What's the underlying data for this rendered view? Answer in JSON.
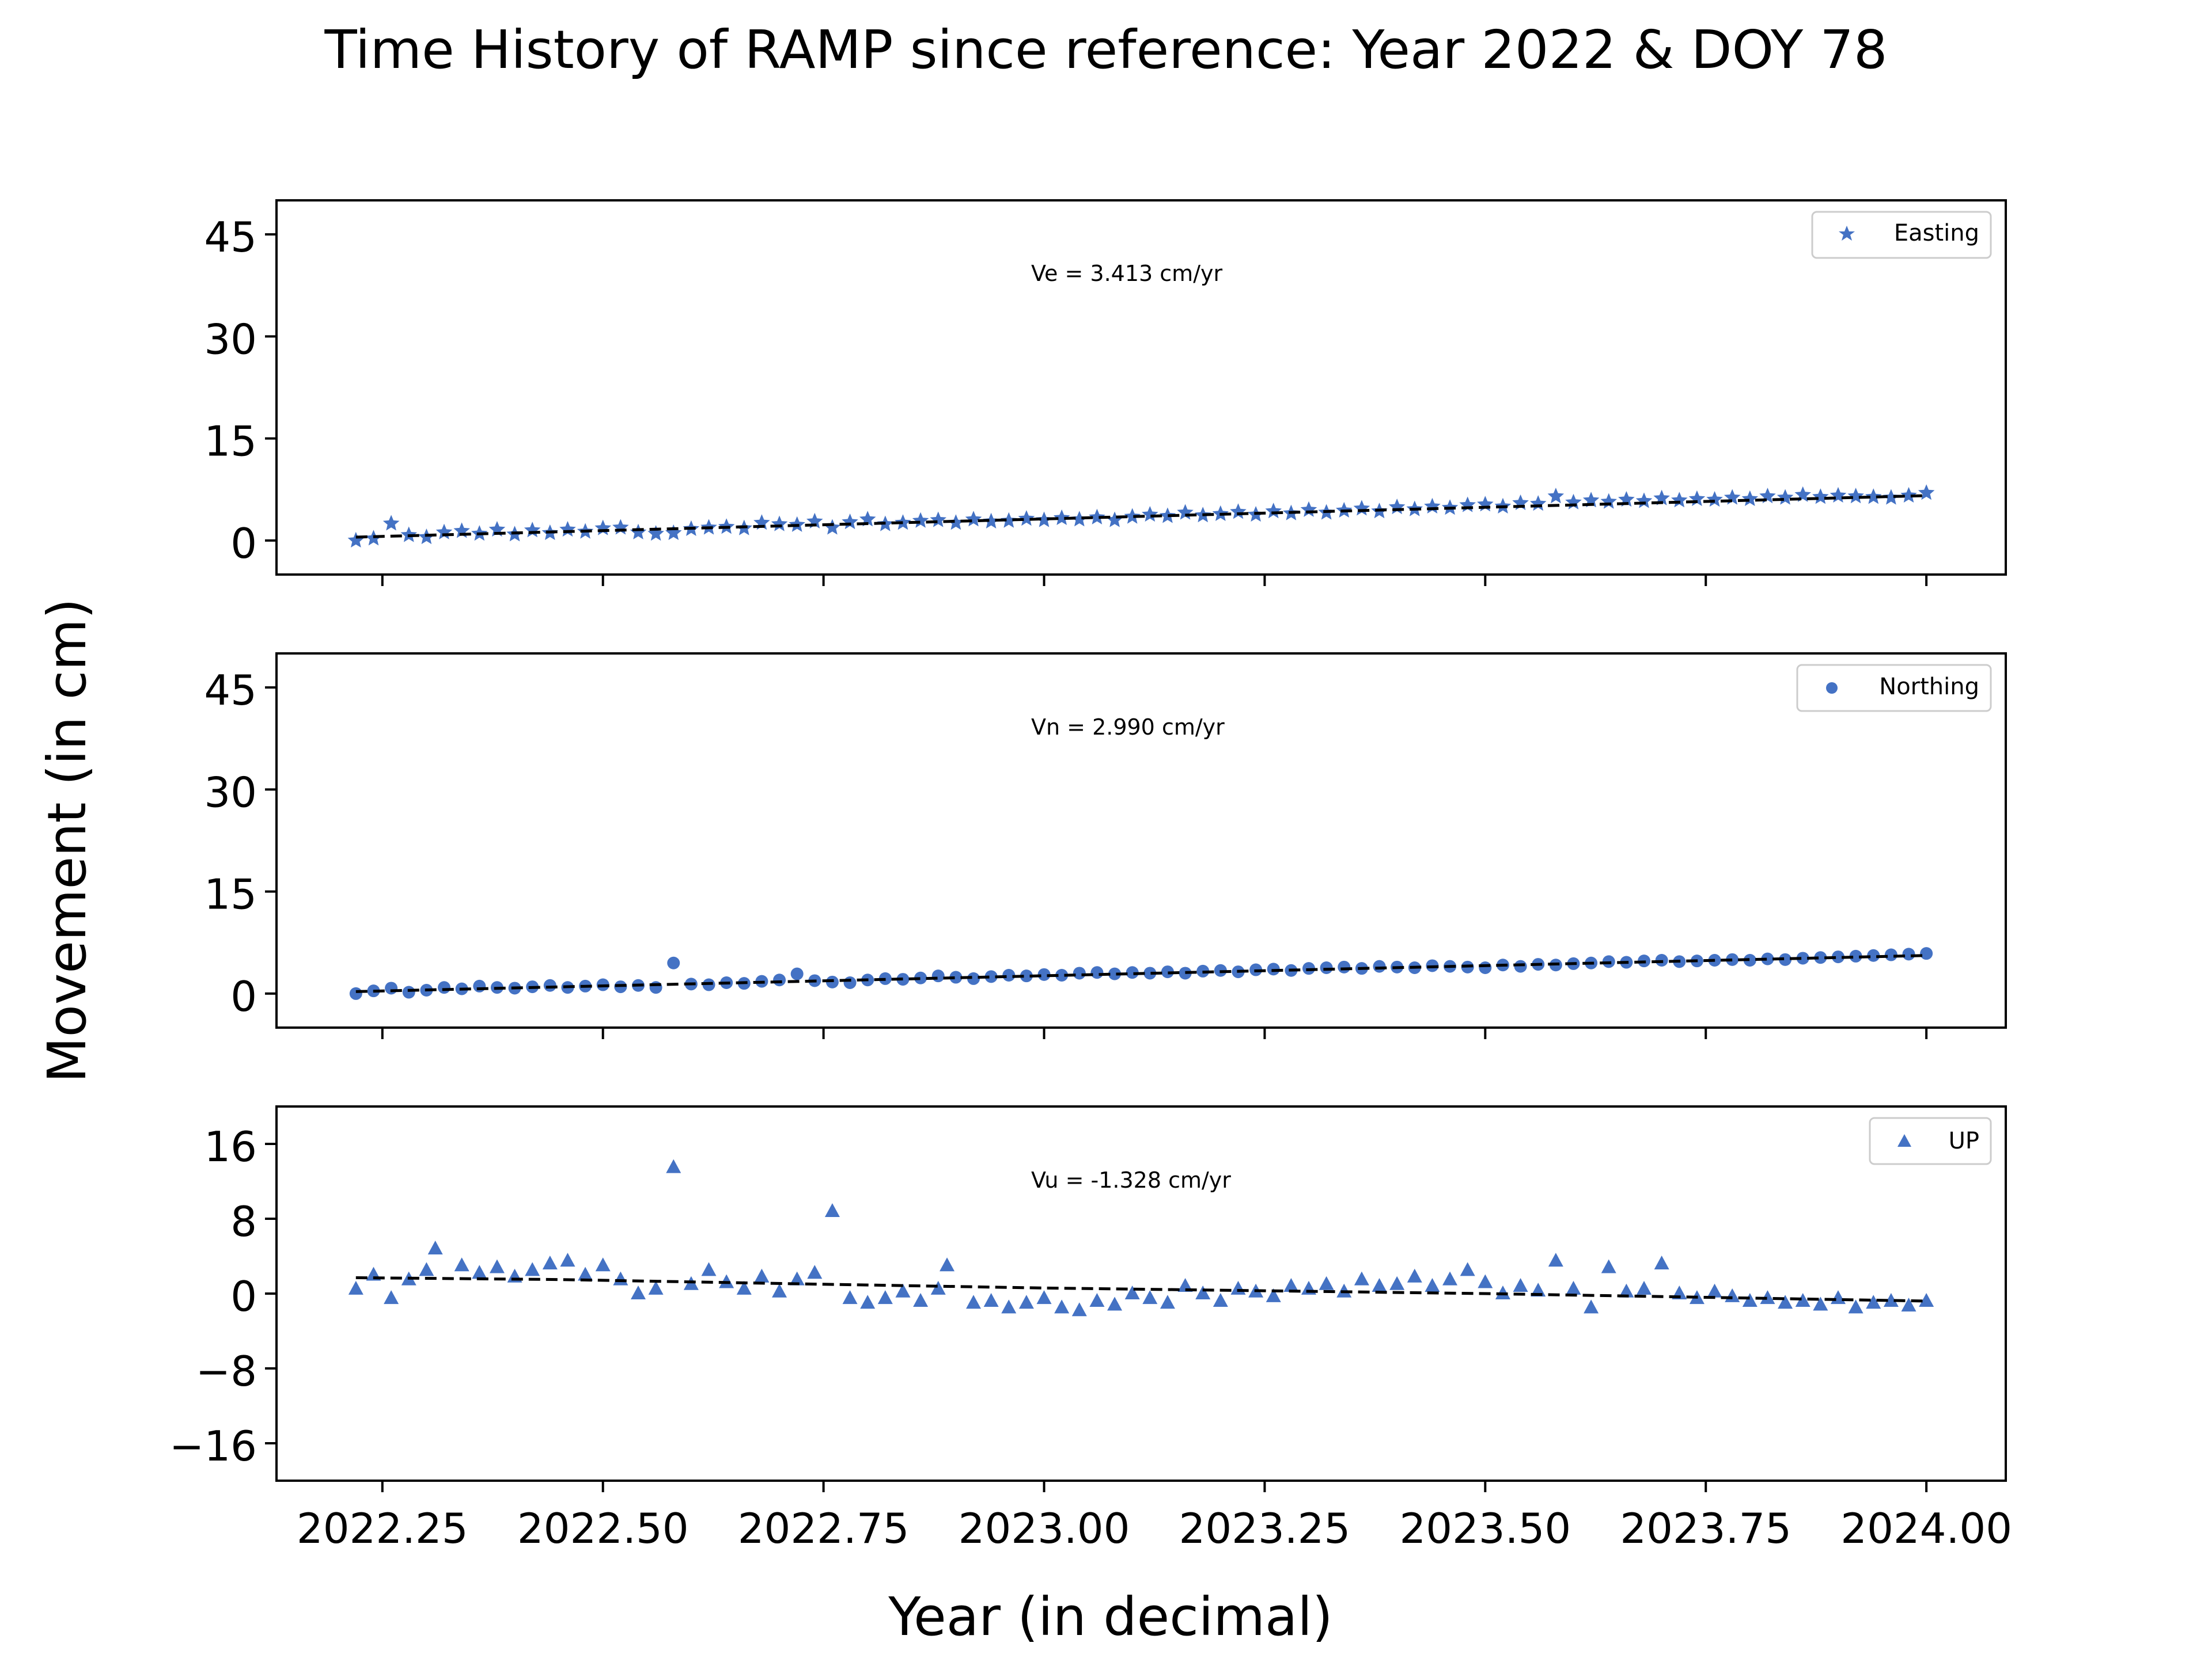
{
  "figure": {
    "title": "Time History of RAMP since reference: Year 2022 & DOY 78",
    "xlabel": "Year (in decimal)",
    "ylabel": "Movement (in cm)",
    "x_ticks": [
      "2022.25",
      "2022.50",
      "2022.75",
      "2023.00",
      "2023.25",
      "2023.50",
      "2023.75",
      "2024.00"
    ]
  },
  "colors": {
    "series": "#4472c4",
    "trend": "#000000"
  },
  "chart_data": [
    {
      "type": "scatter",
      "panel": "easting",
      "legend": "Easting",
      "marker": "star",
      "annotation": "Ve =  3.413 cm/yr",
      "xlim": [
        2022.13,
        2024.09
      ],
      "ylim": [
        -5,
        50
      ],
      "yticks": [
        0,
        15,
        30,
        45
      ],
      "ytick_labels": [
        "0",
        "15",
        "30",
        "45"
      ],
      "trend": {
        "x": [
          2022.22,
          2024.0
        ],
        "y": [
          0.5,
          6.6
        ]
      },
      "x": [
        2022.22,
        2022.24,
        2022.26,
        2022.28,
        2022.3,
        2022.32,
        2022.34,
        2022.36,
        2022.38,
        2022.4,
        2022.42,
        2022.44,
        2022.46,
        2022.48,
        2022.5,
        2022.52,
        2022.54,
        2022.56,
        2022.58,
        2022.6,
        2022.62,
        2022.64,
        2022.66,
        2022.68,
        2022.7,
        2022.72,
        2022.74,
        2022.76,
        2022.78,
        2022.8,
        2022.82,
        2022.84,
        2022.86,
        2022.88,
        2022.9,
        2022.92,
        2022.94,
        2022.96,
        2022.98,
        2023.0,
        2023.02,
        2023.04,
        2023.06,
        2023.08,
        2023.1,
        2023.12,
        2023.14,
        2023.16,
        2023.18,
        2023.2,
        2023.22,
        2023.24,
        2023.26,
        2023.28,
        2023.3,
        2023.32,
        2023.34,
        2023.36,
        2023.38,
        2023.4,
        2023.42,
        2023.44,
        2023.46,
        2023.48,
        2023.5,
        2023.52,
        2023.54,
        2023.56,
        2023.58,
        2023.6,
        2023.62,
        2023.64,
        2023.66,
        2023.68,
        2023.7,
        2023.72,
        2023.74,
        2023.76,
        2023.78,
        2023.8,
        2023.82,
        2023.84,
        2023.86,
        2023.88,
        2023.9,
        2023.92,
        2023.94,
        2023.96,
        2023.98,
        2024.0
      ],
      "y": [
        0.0,
        0.3,
        2.5,
        0.8,
        0.5,
        1.2,
        1.4,
        1.0,
        1.6,
        0.9,
        1.5,
        1.1,
        1.6,
        1.3,
        1.8,
        1.9,
        1.2,
        1.0,
        1.1,
        1.7,
        1.9,
        2.0,
        1.8,
        2.6,
        2.4,
        2.3,
        2.8,
        1.9,
        2.7,
        3.1,
        2.4,
        2.6,
        2.9,
        3.0,
        2.6,
        3.1,
        2.8,
        2.9,
        3.2,
        3.0,
        3.3,
        3.1,
        3.4,
        3.0,
        3.5,
        3.8,
        3.6,
        4.1,
        3.7,
        3.9,
        4.2,
        3.8,
        4.3,
        4.0,
        4.5,
        4.1,
        4.4,
        4.7,
        4.3,
        4.9,
        4.6,
        5.0,
        4.8,
        5.2,
        5.3,
        5.0,
        5.5,
        5.4,
        6.5,
        5.6,
        5.9,
        5.7,
        6.0,
        5.8,
        6.2,
        5.9,
        6.1,
        6.0,
        6.3,
        6.1,
        6.5,
        6.3,
        6.7,
        6.4,
        6.6,
        6.5,
        6.4,
        6.3,
        6.6,
        7.0
      ]
    },
    {
      "type": "scatter",
      "panel": "northing",
      "legend": "Northing",
      "marker": "circle",
      "annotation": "Vn =  2.990 cm/yr",
      "xlim": [
        2022.13,
        2024.09
      ],
      "ylim": [
        -5,
        50
      ],
      "yticks": [
        0,
        15,
        30,
        45
      ],
      "ytick_labels": [
        "0",
        "15",
        "30",
        "45"
      ],
      "trend": {
        "x": [
          2022.22,
          2024.0
        ],
        "y": [
          0.3,
          5.6
        ]
      },
      "x": [
        2022.22,
        2022.24,
        2022.26,
        2022.28,
        2022.3,
        2022.32,
        2022.34,
        2022.36,
        2022.38,
        2022.4,
        2022.42,
        2022.44,
        2022.46,
        2022.48,
        2022.5,
        2022.52,
        2022.54,
        2022.56,
        2022.58,
        2022.6,
        2022.62,
        2022.64,
        2022.66,
        2022.68,
        2022.7,
        2022.72,
        2022.74,
        2022.76,
        2022.78,
        2022.8,
        2022.82,
        2022.84,
        2022.86,
        2022.88,
        2022.9,
        2022.92,
        2022.94,
        2022.96,
        2022.98,
        2023.0,
        2023.02,
        2023.04,
        2023.06,
        2023.08,
        2023.1,
        2023.12,
        2023.14,
        2023.16,
        2023.18,
        2023.2,
        2023.22,
        2023.24,
        2023.26,
        2023.28,
        2023.3,
        2023.32,
        2023.34,
        2023.36,
        2023.38,
        2023.4,
        2023.42,
        2023.44,
        2023.46,
        2023.48,
        2023.5,
        2023.52,
        2023.54,
        2023.56,
        2023.58,
        2023.6,
        2023.62,
        2023.64,
        2023.66,
        2023.68,
        2023.7,
        2023.72,
        2023.74,
        2023.76,
        2023.78,
        2023.8,
        2023.82,
        2023.84,
        2023.86,
        2023.88,
        2023.9,
        2023.92,
        2023.94,
        2023.96,
        2023.98,
        2024.0
      ],
      "y": [
        0.0,
        0.4,
        0.8,
        0.2,
        0.5,
        0.9,
        0.7,
        1.1,
        0.9,
        0.8,
        1.0,
        1.2,
        0.9,
        1.1,
        1.3,
        1.0,
        1.2,
        0.9,
        4.5,
        1.4,
        1.3,
        1.6,
        1.5,
        1.8,
        2.0,
        2.9,
        1.9,
        1.7,
        1.6,
        2.0,
        2.2,
        2.1,
        2.3,
        2.6,
        2.4,
        2.2,
        2.5,
        2.7,
        2.6,
        2.8,
        2.7,
        3.0,
        3.1,
        2.9,
        3.1,
        3.0,
        3.2,
        3.0,
        3.3,
        3.4,
        3.2,
        3.5,
        3.6,
        3.4,
        3.7,
        3.8,
        3.9,
        3.7,
        4.0,
        3.9,
        3.8,
        4.1,
        4.0,
        3.9,
        3.8,
        4.2,
        4.0,
        4.3,
        4.2,
        4.4,
        4.5,
        4.7,
        4.6,
        4.8,
        4.9,
        4.7,
        4.8,
        4.9,
        5.0,
        4.9,
        5.1,
        5.0,
        5.2,
        5.3,
        5.4,
        5.5,
        5.6,
        5.7,
        5.8,
        5.9
      ]
    },
    {
      "type": "scatter",
      "panel": "up",
      "legend": "UP",
      "marker": "triangle",
      "annotation": "Vu = -1.328 cm/yr",
      "xlim": [
        2022.13,
        2024.09
      ],
      "ylim": [
        -20,
        20
      ],
      "yticks": [
        16,
        8,
        0,
        -8,
        -16
      ],
      "ytick_labels": [
        "16",
        "8",
        "0",
        "−8",
        "−16"
      ],
      "trend": {
        "x": [
          2022.22,
          2022.45,
          2022.75,
          2023.0,
          2023.25,
          2023.5,
          2023.75,
          2024.0
        ],
        "y": [
          1.7,
          1.5,
          1.0,
          0.6,
          0.3,
          0.0,
          -0.4,
          -0.8
        ]
      },
      "x": [
        2022.22,
        2022.24,
        2022.26,
        2022.28,
        2022.3,
        2022.31,
        2022.34,
        2022.36,
        2022.38,
        2022.4,
        2022.42,
        2022.44,
        2022.46,
        2022.48,
        2022.5,
        2022.52,
        2022.54,
        2022.56,
        2022.58,
        2022.6,
        2022.62,
        2022.64,
        2022.66,
        2022.68,
        2022.7,
        2022.72,
        2022.74,
        2022.76,
        2022.78,
        2022.8,
        2022.82,
        2022.84,
        2022.86,
        2022.88,
        2022.89,
        2022.92,
        2022.94,
        2022.96,
        2022.98,
        2023.0,
        2023.02,
        2023.04,
        2023.06,
        2023.08,
        2023.1,
        2023.12,
        2023.14,
        2023.16,
        2023.18,
        2023.2,
        2023.22,
        2023.24,
        2023.26,
        2023.28,
        2023.3,
        2023.32,
        2023.34,
        2023.36,
        2023.38,
        2023.4,
        2023.42,
        2023.44,
        2023.46,
        2023.48,
        2023.5,
        2023.52,
        2023.54,
        2023.56,
        2023.58,
        2023.6,
        2023.62,
        2023.64,
        2023.66,
        2023.68,
        2023.7,
        2023.72,
        2023.74,
        2023.76,
        2023.78,
        2023.8,
        2023.82,
        2023.84,
        2023.86,
        2023.88,
        2023.9,
        2023.92,
        2023.94,
        2023.96,
        2023.98,
        2024.0
      ],
      "y": [
        0.5,
        2.0,
        -0.5,
        1.5,
        2.5,
        4.8,
        3.0,
        2.2,
        2.8,
        1.8,
        2.5,
        3.2,
        3.5,
        2.0,
        3.0,
        1.5,
        0.0,
        0.5,
        13.5,
        1.0,
        2.5,
        1.2,
        0.5,
        1.8,
        0.2,
        1.5,
        2.2,
        8.8,
        -0.5,
        -1.0,
        -0.5,
        0.2,
        -0.8,
        0.5,
        3.0,
        -1.0,
        -0.8,
        -1.5,
        -1.0,
        -0.5,
        -1.5,
        -1.8,
        -0.8,
        -1.2,
        0.0,
        -0.5,
        -1.0,
        0.8,
        0.0,
        -0.8,
        0.5,
        0.2,
        -0.3,
        0.8,
        0.5,
        1.0,
        0.2,
        1.5,
        0.8,
        1.0,
        1.8,
        0.8,
        1.5,
        2.5,
        1.2,
        0.0,
        0.8,
        0.3,
        3.5,
        0.5,
        -1.5,
        2.8,
        0.2,
        0.5,
        3.2,
        0.0,
        -0.5,
        0.2,
        -0.3,
        -0.8,
        -0.5,
        -1.0,
        -0.8,
        -1.2,
        -0.5,
        -1.5,
        -1.0,
        -0.8,
        -1.3,
        -0.8
      ]
    }
  ]
}
